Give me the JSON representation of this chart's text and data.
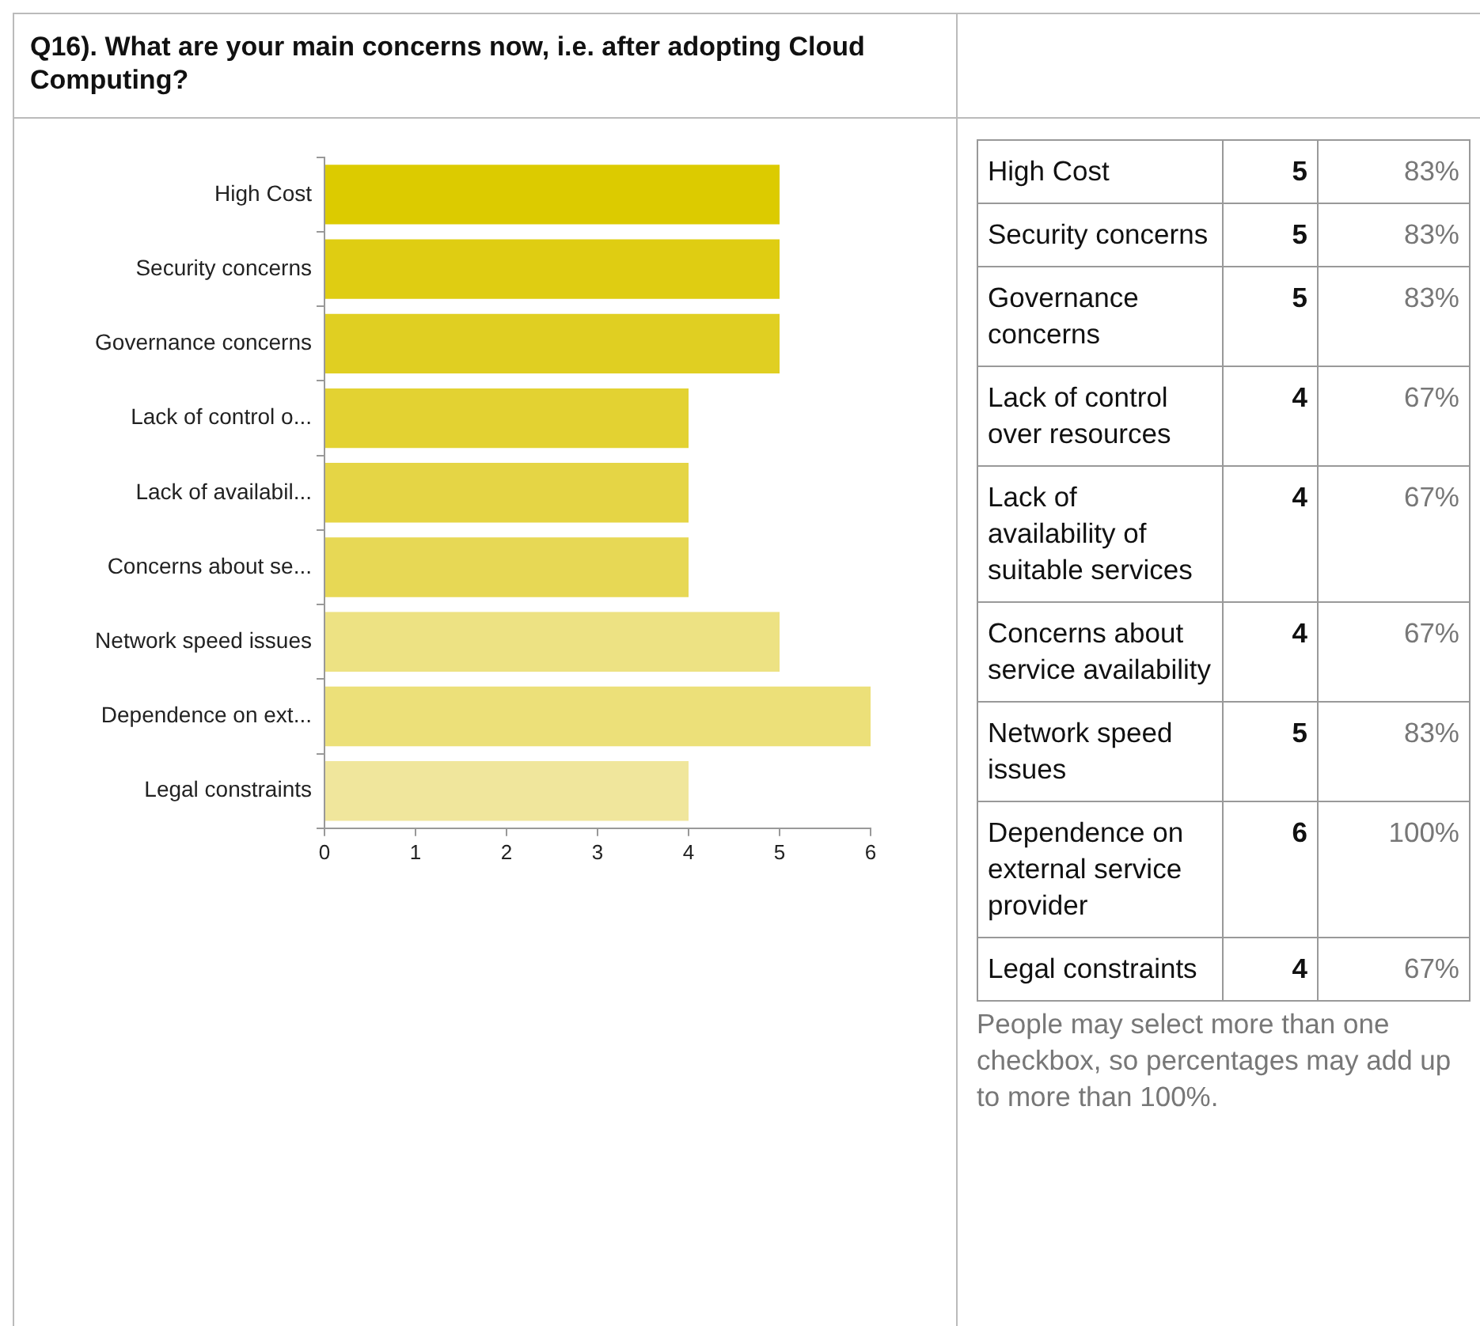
{
  "chart_data": [
    {
      "type": "bar",
      "orientation": "horizontal",
      "title": "Q16). What are your main concerns now, i.e. after adopting Cloud Computing?",
      "categories": [
        "High Cost",
        "Security concerns",
        "Governance concerns",
        "Lack of control o...",
        "Lack of availabil...",
        "Concerns about se...",
        "Network speed issues",
        "Dependence on ext...",
        "Legal constraints"
      ],
      "values": [
        5,
        5,
        5,
        4,
        4,
        4,
        5,
        6,
        4
      ],
      "colors": [
        "#dccb00",
        "#dfcd12",
        "#e0cf22",
        "#e3d232",
        "#e5d545",
        "#e7d855",
        "#ede283",
        "#ece079",
        "#f0e69c"
      ],
      "xlim": [
        0,
        6
      ],
      "xticks": [
        0,
        1,
        2,
        3,
        4,
        5,
        6
      ]
    },
    {
      "type": "other",
      "data_labels": true,
      "categories": [
        "High Cost",
        "Security concerns",
        "Governance concerns",
        "Lack of control over resources",
        "Lack of availability of suitable services",
        "Concerns about service availability",
        "Network speed issues",
        "Dependence on external service provider",
        "Legal constraints"
      ],
      "series": [
        {
          "values": [
            5,
            5,
            5,
            4,
            4,
            4,
            5,
            6,
            4
          ]
        },
        {
          "values": [
            83,
            83,
            83,
            67,
            67,
            67,
            83,
            100,
            67
          ],
          "value_labels": [
            "83%",
            "83%",
            "83%",
            "67%",
            "67%",
            "67%",
            "83%",
            "100%",
            "67%"
          ]
        }
      ],
      "annotations": [
        "People may select more than one checkbox, so percentages may add up to more than 100%."
      ]
    }
  ]
}
